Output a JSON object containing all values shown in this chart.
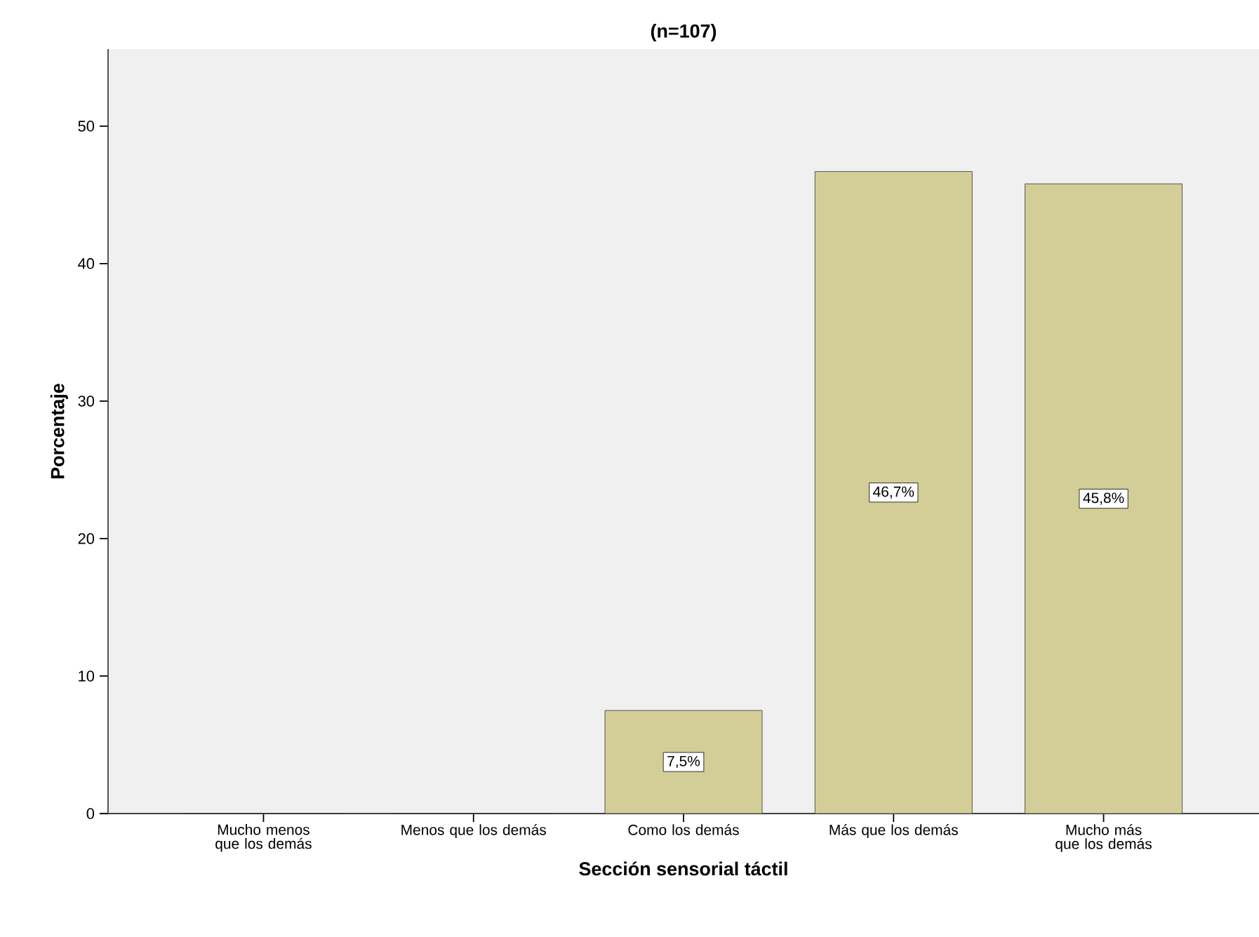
{
  "chart_data": {
    "type": "bar",
    "title": "(n=107)",
    "xlabel": "Sección sensorial táctil",
    "ylabel": "Porcentaje",
    "categories": [
      "Mucho menos que los demás",
      "Menos que los demás",
      "Como los demás",
      "Más que los demás",
      "Mucho más que los demás"
    ],
    "values": [
      0,
      0,
      7.5,
      46.7,
      45.8
    ],
    "value_labels": [
      null,
      null,
      "7,5%",
      "46,7%",
      "45,8%"
    ],
    "color": "#d3ce97",
    "ylim": [
      0,
      55.6
    ],
    "yticks": [
      0,
      10,
      20,
      30,
      40,
      50
    ]
  }
}
